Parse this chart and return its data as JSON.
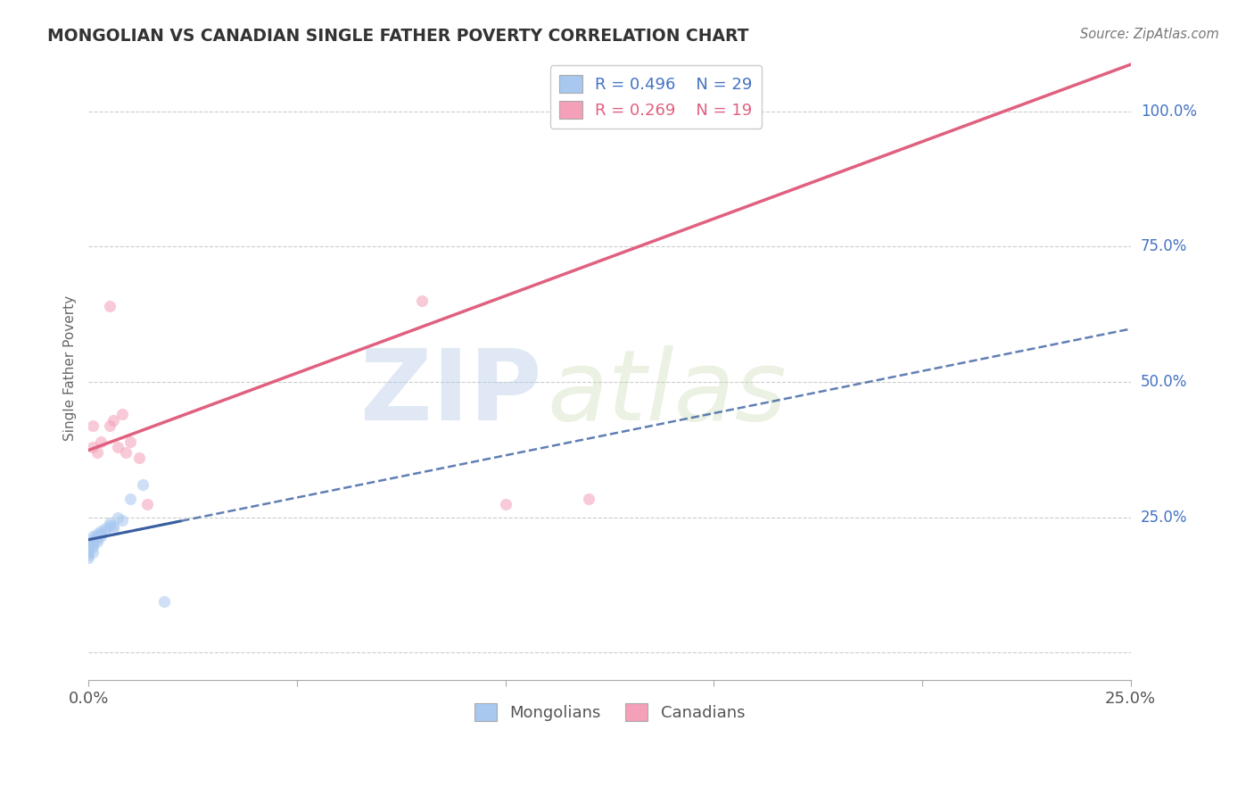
{
  "title": "MONGOLIAN VS CANADIAN SINGLE FATHER POVERTY CORRELATION CHART",
  "source": "Source: ZipAtlas.com",
  "ylabel": "Single Father Poverty",
  "xlim": [
    0.0,
    0.25
  ],
  "ylim": [
    -0.05,
    1.1
  ],
  "legend_r1": "R = 0.496",
  "legend_n1": "N = 29",
  "legend_r2": "R = 0.269",
  "legend_n2": "N = 19",
  "mongolian_color": "#a8c8f0",
  "canadian_color": "#f4a0b8",
  "mongolian_line_color": "#3a5fa0",
  "canadian_line_color": "#e06080",
  "scatter_size": 90,
  "scatter_alpha": 0.55,
  "watermark_zip": "ZIP",
  "watermark_atlas": "atlas",
  "background_color": "#ffffff",
  "grid_color": "#cccccc",
  "mongolian_x": [
    0.0,
    0.0,
    0.0,
    0.0,
    0.0,
    0.001,
    0.001,
    0.001,
    0.001,
    0.001,
    0.001,
    0.002,
    0.002,
    0.002,
    0.002,
    0.003,
    0.003,
    0.003,
    0.004,
    0.004,
    0.005,
    0.005,
    0.006,
    0.006,
    0.007,
    0.008,
    0.01,
    0.013,
    0.018
  ],
  "mongolian_y": [
    0.175,
    0.18,
    0.185,
    0.19,
    0.195,
    0.185,
    0.195,
    0.2,
    0.205,
    0.21,
    0.215,
    0.205,
    0.21,
    0.215,
    0.22,
    0.215,
    0.22,
    0.225,
    0.225,
    0.23,
    0.235,
    0.24,
    0.23,
    0.235,
    0.25,
    0.245,
    0.285,
    0.31,
    0.095
  ],
  "canadian_x": [
    0.001,
    0.001,
    0.002,
    0.003,
    0.005,
    0.005,
    0.006,
    0.007,
    0.008,
    0.009,
    0.01,
    0.012,
    0.014,
    0.08,
    0.1,
    0.12,
    0.14,
    0.145,
    0.15
  ],
  "canadian_y": [
    0.38,
    0.42,
    0.37,
    0.39,
    0.42,
    0.64,
    0.43,
    0.38,
    0.44,
    0.37,
    0.39,
    0.36,
    0.275,
    0.65,
    0.275,
    0.285,
    0.99,
    0.985,
    0.99
  ],
  "y_ticks": [
    0.0,
    0.25,
    0.5,
    0.75,
    1.0
  ],
  "y_tick_labels": [
    "25.0%",
    "50.0%",
    "75.0%",
    "100.0%"
  ],
  "x_tick_labels": [
    "0.0%",
    "",
    "",
    "",
    "",
    "25.0%"
  ]
}
